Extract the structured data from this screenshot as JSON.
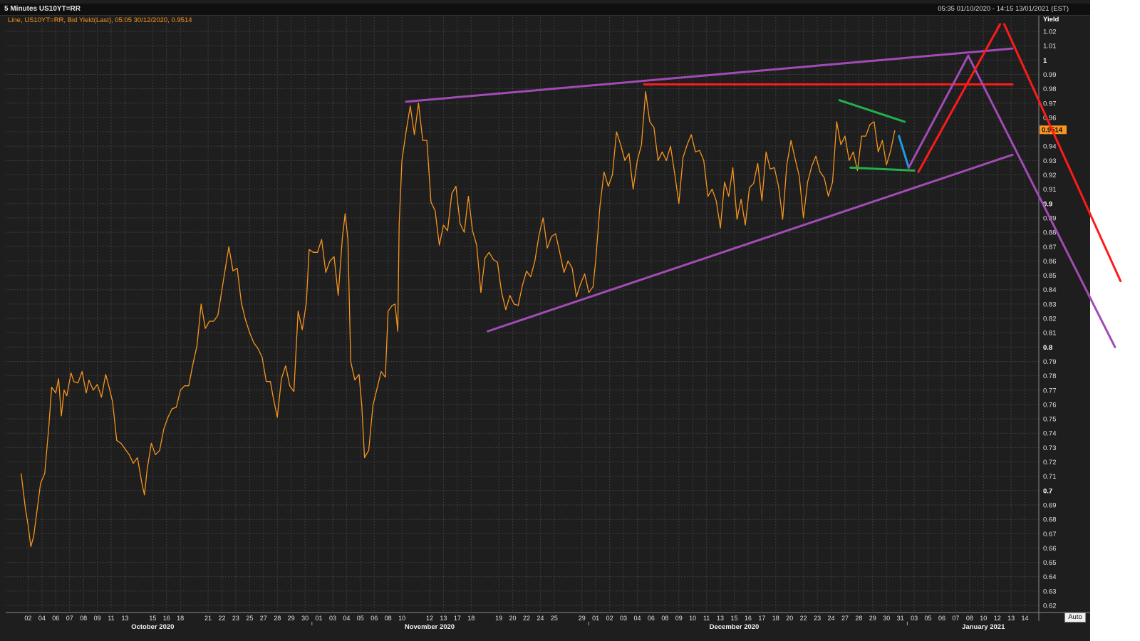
{
  "window": {
    "title": "5 Minutes US10YT=RR",
    "range": "05:35 01/10/2020 - 14:15 13/01/2021 (EST)",
    "auto_label": "Auto"
  },
  "legend": "Line, US10YT=RR, Bid Yield(Last), 05:05 30/12/2020, 0.9514",
  "colors": {
    "line": "#f7941d",
    "purple": "#a24bb5",
    "red": "#ff1a1a",
    "green": "#22b04a",
    "blue": "#1e9be8",
    "last_badge": "#f7941d"
  },
  "chart_data": {
    "type": "line",
    "ylabel": "Yield",
    "ylim": [
      0.62,
      1.02
    ],
    "y_ticks": [
      "1.02",
      "1.01",
      "1",
      "0.99",
      "0.98",
      "0.97",
      "0.96",
      "0.95",
      "0.94",
      "0.93",
      "0.92",
      "0.91",
      "0.9",
      "0.89",
      "0.88",
      "0.87",
      "0.86",
      "0.85",
      "0.84",
      "0.83",
      "0.82",
      "0.81",
      "0.8",
      "0.79",
      "0.78",
      "0.77",
      "0.76",
      "0.75",
      "0.74",
      "0.73",
      "0.72",
      "0.71",
      "0.7",
      "0.69",
      "0.68",
      "0.67",
      "0.66",
      "0.65",
      "0.64",
      "0.63",
      "0.62"
    ],
    "bold_ticks": [
      "1",
      "0.9",
      "0.8",
      "0.7"
    ],
    "last_value": "0.9514",
    "x_days": [
      {
        "d": "02",
        "i": 1
      },
      {
        "d": "04",
        "i": 2
      },
      {
        "d": "06",
        "i": 3
      },
      {
        "d": "07",
        "i": 4
      },
      {
        "d": "08",
        "i": 5
      },
      {
        "d": "09",
        "i": 6
      },
      {
        "d": "11",
        "i": 7
      },
      {
        "d": "13",
        "i": 8
      },
      {
        "d": "15",
        "i": 10
      },
      {
        "d": "16",
        "i": 11
      },
      {
        "d": "18",
        "i": 12
      },
      {
        "d": "21",
        "i": 14
      },
      {
        "d": "22",
        "i": 15
      },
      {
        "d": "23",
        "i": 16
      },
      {
        "d": "25",
        "i": 17
      },
      {
        "d": "27",
        "i": 18
      },
      {
        "d": "28",
        "i": 19
      },
      {
        "d": "29",
        "i": 20
      },
      {
        "d": "30",
        "i": 21
      },
      {
        "d": "01",
        "i": 22
      },
      {
        "d": "03",
        "i": 23
      },
      {
        "d": "04",
        "i": 24
      },
      {
        "d": "05",
        "i": 25
      },
      {
        "d": "06",
        "i": 26
      },
      {
        "d": "08",
        "i": 27
      },
      {
        "d": "10",
        "i": 28
      },
      {
        "d": "12",
        "i": 30
      },
      {
        "d": "13",
        "i": 31
      },
      {
        "d": "17",
        "i": 32
      },
      {
        "d": "18",
        "i": 33
      },
      {
        "d": "19",
        "i": 35
      },
      {
        "d": "20",
        "i": 36
      },
      {
        "d": "22",
        "i": 37
      },
      {
        "d": "24",
        "i": 38
      },
      {
        "d": "25",
        "i": 39
      },
      {
        "d": "29",
        "i": 41
      },
      {
        "d": "01",
        "i": 42
      },
      {
        "d": "02",
        "i": 43
      },
      {
        "d": "03",
        "i": 44
      },
      {
        "d": "04",
        "i": 45
      },
      {
        "d": "06",
        "i": 46
      },
      {
        "d": "08",
        "i": 47
      },
      {
        "d": "09",
        "i": 48
      },
      {
        "d": "10",
        "i": 49
      },
      {
        "d": "11",
        "i": 50
      },
      {
        "d": "13",
        "i": 51
      },
      {
        "d": "15",
        "i": 52
      },
      {
        "d": "16",
        "i": 53
      },
      {
        "d": "17",
        "i": 54
      },
      {
        "d": "18",
        "i": 55
      },
      {
        "d": "20",
        "i": 56
      },
      {
        "d": "22",
        "i": 57
      },
      {
        "d": "23",
        "i": 58
      },
      {
        "d": "24",
        "i": 59
      },
      {
        "d": "27",
        "i": 60
      },
      {
        "d": "28",
        "i": 61
      },
      {
        "d": "29",
        "i": 62
      },
      {
        "d": "30",
        "i": 63
      },
      {
        "d": "31",
        "i": 64
      },
      {
        "d": "03",
        "i": 65
      },
      {
        "d": "05",
        "i": 66
      },
      {
        "d": "06",
        "i": 67
      },
      {
        "d": "07",
        "i": 68
      },
      {
        "d": "08",
        "i": 69
      },
      {
        "d": "10",
        "i": 70
      },
      {
        "d": "12",
        "i": 71
      },
      {
        "d": "13",
        "i": 72
      },
      {
        "d": "14",
        "i": 73
      }
    ],
    "months": [
      {
        "label": "October 2020",
        "i": 10
      },
      {
        "label": "November 2020",
        "i": 30
      },
      {
        "label": "December 2020",
        "i": 52
      },
      {
        "label": "January 2021",
        "i": 70
      }
    ],
    "x_range": [
      0,
      74
    ],
    "series": [
      {
        "values": [
          [
            0.5,
            0.712
          ],
          [
            0.8,
            0.688
          ],
          [
            1.0,
            0.676
          ],
          [
            1.2,
            0.661
          ],
          [
            1.4,
            0.668
          ],
          [
            1.7,
            0.69
          ],
          [
            1.9,
            0.705
          ],
          [
            2.2,
            0.712
          ],
          [
            2.5,
            0.745
          ],
          [
            2.7,
            0.772
          ],
          [
            3.0,
            0.768
          ],
          [
            3.2,
            0.778
          ],
          [
            3.4,
            0.752
          ],
          [
            3.6,
            0.77
          ],
          [
            3.8,
            0.766
          ],
          [
            4.1,
            0.782
          ],
          [
            4.3,
            0.776
          ],
          [
            4.6,
            0.775
          ],
          [
            4.9,
            0.783
          ],
          [
            5.2,
            0.768
          ],
          [
            5.4,
            0.777
          ],
          [
            5.7,
            0.77
          ],
          [
            6.0,
            0.774
          ],
          [
            6.3,
            0.765
          ],
          [
            6.6,
            0.781
          ],
          [
            6.8,
            0.774
          ],
          [
            7.1,
            0.762
          ],
          [
            7.4,
            0.735
          ],
          [
            7.7,
            0.733
          ],
          [
            8.0,
            0.729
          ],
          [
            8.3,
            0.725
          ],
          [
            8.6,
            0.719
          ],
          [
            8.9,
            0.723
          ],
          [
            9.2,
            0.706
          ],
          [
            9.4,
            0.697
          ],
          [
            9.6,
            0.715
          ],
          [
            9.9,
            0.733
          ],
          [
            10.2,
            0.725
          ],
          [
            10.5,
            0.728
          ],
          [
            10.8,
            0.743
          ],
          [
            11.1,
            0.751
          ],
          [
            11.4,
            0.757
          ],
          [
            11.7,
            0.758
          ],
          [
            12.0,
            0.77
          ],
          [
            12.3,
            0.773
          ],
          [
            12.6,
            0.773
          ],
          [
            12.9,
            0.788
          ],
          [
            13.2,
            0.801
          ],
          [
            13.5,
            0.83
          ],
          [
            13.8,
            0.813
          ],
          [
            14.1,
            0.818
          ],
          [
            14.4,
            0.818
          ],
          [
            14.7,
            0.822
          ],
          [
            15.0,
            0.84
          ],
          [
            15.3,
            0.858
          ],
          [
            15.5,
            0.87
          ],
          [
            15.8,
            0.853
          ],
          [
            16.1,
            0.855
          ],
          [
            16.4,
            0.831
          ],
          [
            16.7,
            0.819
          ],
          [
            17.0,
            0.81
          ],
          [
            17.3,
            0.803
          ],
          [
            17.6,
            0.799
          ],
          [
            17.9,
            0.793
          ],
          [
            18.2,
            0.776
          ],
          [
            18.5,
            0.776
          ],
          [
            18.7,
            0.765
          ],
          [
            19.0,
            0.751
          ],
          [
            19.3,
            0.778
          ],
          [
            19.6,
            0.787
          ],
          [
            19.9,
            0.773
          ],
          [
            20.2,
            0.769
          ],
          [
            20.5,
            0.825
          ],
          [
            20.8,
            0.812
          ],
          [
            21.1,
            0.831
          ],
          [
            21.3,
            0.868
          ],
          [
            21.6,
            0.866
          ],
          [
            21.9,
            0.866
          ],
          [
            22.2,
            0.875
          ],
          [
            22.5,
            0.852
          ],
          [
            22.8,
            0.86
          ],
          [
            23.1,
            0.863
          ],
          [
            23.4,
            0.836
          ],
          [
            23.7,
            0.876
          ],
          [
            23.9,
            0.893
          ],
          [
            24.1,
            0.875
          ],
          [
            24.3,
            0.79
          ],
          [
            24.6,
            0.777
          ],
          [
            24.9,
            0.781
          ],
          [
            25.1,
            0.759
          ],
          [
            25.3,
            0.723
          ],
          [
            25.6,
            0.728
          ],
          [
            25.9,
            0.759
          ],
          [
            26.2,
            0.771
          ],
          [
            26.5,
            0.783
          ],
          [
            26.8,
            0.779
          ],
          [
            27.0,
            0.825
          ],
          [
            27.3,
            0.829
          ],
          [
            27.5,
            0.83
          ],
          [
            27.7,
            0.811
          ],
          [
            27.8,
            0.885
          ],
          [
            28.0,
            0.93
          ],
          [
            28.3,
            0.95
          ],
          [
            28.6,
            0.968
          ],
          [
            28.9,
            0.948
          ],
          [
            29.2,
            0.97
          ],
          [
            29.5,
            0.944
          ],
          [
            29.8,
            0.944
          ],
          [
            30.1,
            0.901
          ],
          [
            30.4,
            0.895
          ],
          [
            30.7,
            0.871
          ],
          [
            31.0,
            0.885
          ],
          [
            31.3,
            0.881
          ],
          [
            31.6,
            0.907
          ],
          [
            31.9,
            0.912
          ],
          [
            32.2,
            0.886
          ],
          [
            32.5,
            0.88
          ],
          [
            32.8,
            0.905
          ],
          [
            33.1,
            0.881
          ],
          [
            33.4,
            0.871
          ],
          [
            33.7,
            0.838
          ],
          [
            34.0,
            0.862
          ],
          [
            34.3,
            0.866
          ],
          [
            34.6,
            0.861
          ],
          [
            34.9,
            0.859
          ],
          [
            35.2,
            0.838
          ],
          [
            35.5,
            0.826
          ],
          [
            35.8,
            0.836
          ],
          [
            36.1,
            0.83
          ],
          [
            36.4,
            0.829
          ],
          [
            36.7,
            0.843
          ],
          [
            37.0,
            0.853
          ],
          [
            37.3,
            0.849
          ],
          [
            37.6,
            0.86
          ],
          [
            37.9,
            0.878
          ],
          [
            38.2,
            0.89
          ],
          [
            38.5,
            0.869
          ],
          [
            38.8,
            0.877
          ],
          [
            39.1,
            0.879
          ],
          [
            39.4,
            0.866
          ],
          [
            39.7,
            0.852
          ],
          [
            40.0,
            0.86
          ],
          [
            40.3,
            0.855
          ],
          [
            40.6,
            0.835
          ],
          [
            40.9,
            0.844
          ],
          [
            41.2,
            0.851
          ],
          [
            41.5,
            0.838
          ],
          [
            41.8,
            0.842
          ],
          [
            42.0,
            0.861
          ],
          [
            42.3,
            0.898
          ],
          [
            42.6,
            0.922
          ],
          [
            42.9,
            0.912
          ],
          [
            43.2,
            0.92
          ],
          [
            43.5,
            0.95
          ],
          [
            43.8,
            0.941
          ],
          [
            44.1,
            0.93
          ],
          [
            44.4,
            0.935
          ],
          [
            44.7,
            0.91
          ],
          [
            45.0,
            0.93
          ],
          [
            45.3,
            0.941
          ],
          [
            45.6,
            0.978
          ],
          [
            45.9,
            0.957
          ],
          [
            46.2,
            0.953
          ],
          [
            46.5,
            0.93
          ],
          [
            46.8,
            0.936
          ],
          [
            47.1,
            0.93
          ],
          [
            47.4,
            0.94
          ],
          [
            47.7,
            0.921
          ],
          [
            48.0,
            0.9
          ],
          [
            48.3,
            0.932
          ],
          [
            48.6,
            0.941
          ],
          [
            48.9,
            0.948
          ],
          [
            49.2,
            0.936
          ],
          [
            49.5,
            0.937
          ],
          [
            49.8,
            0.93
          ],
          [
            50.1,
            0.905
          ],
          [
            50.4,
            0.91
          ],
          [
            50.7,
            0.902
          ],
          [
            51.0,
            0.883
          ],
          [
            51.3,
            0.915
          ],
          [
            51.6,
            0.905
          ],
          [
            51.9,
            0.925
          ],
          [
            52.2,
            0.889
          ],
          [
            52.5,
            0.903
          ],
          [
            52.8,
            0.885
          ],
          [
            53.1,
            0.911
          ],
          [
            53.4,
            0.914
          ],
          [
            53.7,
            0.928
          ],
          [
            54.0,
            0.902
          ],
          [
            54.3,
            0.936
          ],
          [
            54.6,
            0.924
          ],
          [
            54.9,
            0.925
          ],
          [
            55.2,
            0.912
          ],
          [
            55.5,
            0.889
          ],
          [
            55.8,
            0.927
          ],
          [
            56.1,
            0.944
          ],
          [
            56.4,
            0.931
          ],
          [
            56.7,
            0.919
          ],
          [
            57.0,
            0.89
          ],
          [
            57.3,
            0.915
          ],
          [
            57.6,
            0.926
          ],
          [
            57.9,
            0.933
          ],
          [
            58.2,
            0.922
          ],
          [
            58.5,
            0.918
          ],
          [
            58.8,
            0.905
          ],
          [
            59.1,
            0.915
          ],
          [
            59.4,
            0.957
          ],
          [
            59.7,
            0.941
          ],
          [
            60.0,
            0.947
          ],
          [
            60.3,
            0.93
          ],
          [
            60.6,
            0.936
          ],
          [
            60.9,
            0.923
          ],
          [
            61.2,
            0.947
          ],
          [
            61.5,
            0.947
          ],
          [
            61.8,
            0.955
          ],
          [
            62.1,
            0.957
          ],
          [
            62.4,
            0.936
          ],
          [
            62.7,
            0.944
          ],
          [
            63.0,
            0.927
          ],
          [
            63.3,
            0.937
          ],
          [
            63.6,
            0.951
          ]
        ]
      }
    ]
  }
}
